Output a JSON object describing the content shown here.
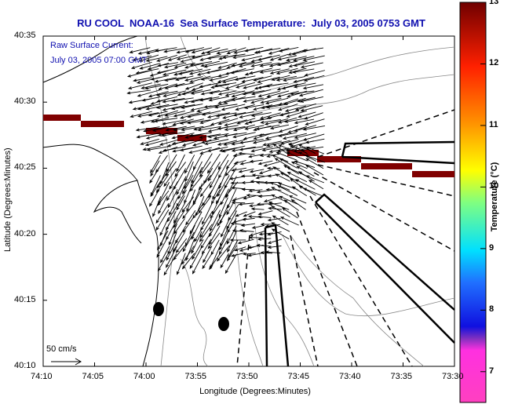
{
  "title": "RU COOL  NOAA-16  Sea Surface Temperature:  July 03, 2005 0753 GMT",
  "annotation": {
    "line1": "Raw Surface Current:",
    "line2": "July 03, 2005 07:00 GMT"
  },
  "axes": {
    "xlabel": "Longitude (Degrees:Minutes)",
    "ylabel": "Latitude (Degrees:Minutes)",
    "xticks": [
      "74:10",
      "74:05",
      "74:00",
      "73:55",
      "73:50",
      "73:45",
      "73:40",
      "73:35",
      "73:30"
    ],
    "yticks": [
      "40:35",
      "40:30",
      "40:25",
      "40:20",
      "40:15",
      "40:10"
    ]
  },
  "scale_arrow": {
    "label": "50 cm/s",
    "value_cm_s": 50
  },
  "colorbar": {
    "label": "Temperature (°C)",
    "min": 6.5,
    "max": 13,
    "ticks": [
      "13",
      "12",
      "11",
      "10",
      "9",
      "8",
      "7"
    ],
    "colors": [
      "#ff40c0",
      "#8030c0",
      "#2020e0",
      "#00e0ff",
      "#80ff80",
      "#ffff00",
      "#ff8000",
      "#ff2000",
      "#800000"
    ]
  },
  "sst_patch_color": "#800000",
  "markers": [
    {
      "name": "station-1",
      "lon": "73:59",
      "lat": "40:14.5"
    },
    {
      "name": "station-2",
      "lon": "73:52.5",
      "lat": "40:13.5"
    }
  ]
}
